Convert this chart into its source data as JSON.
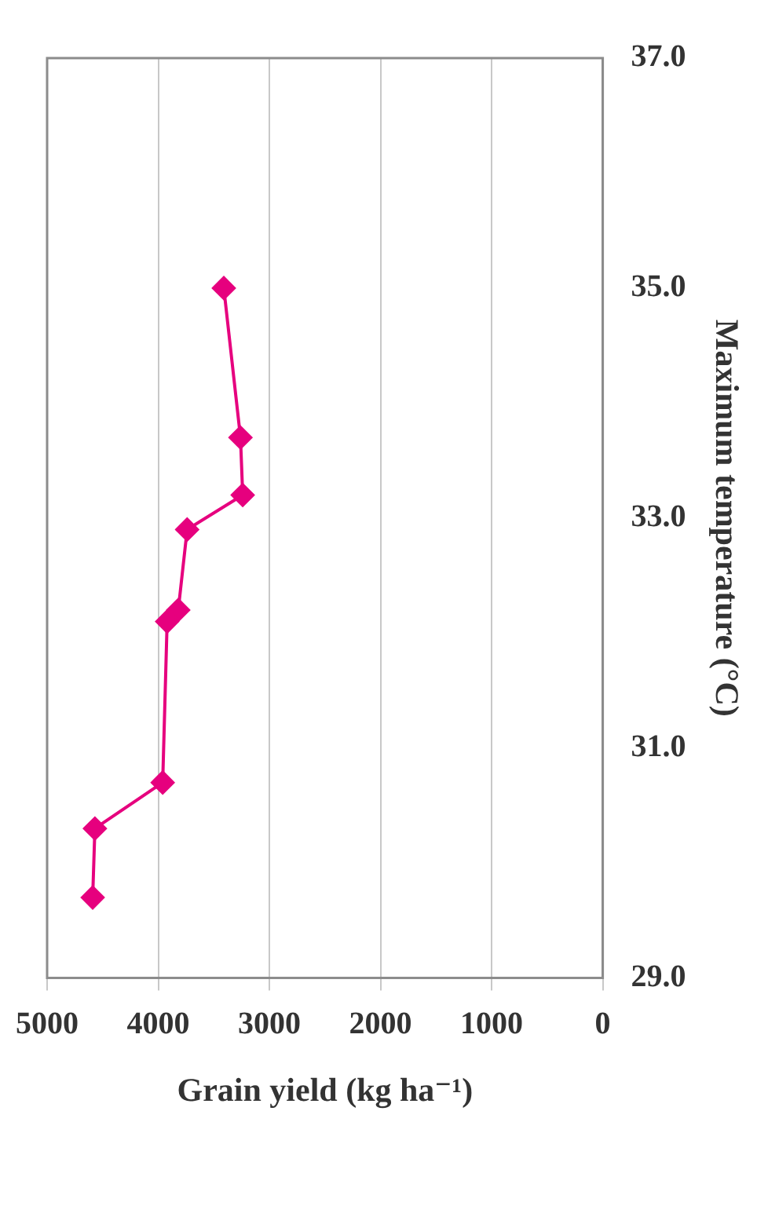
{
  "chart_data": {
    "type": "line",
    "xlabel": "Grain yield (kg ha⁻¹)",
    "ylabel": "Maximum temperature (°C)",
    "xlim": [
      5000,
      0
    ],
    "xticks": [
      5000,
      4000,
      3000,
      2000,
      1000,
      0
    ],
    "ylim": [
      29.0,
      37.0
    ],
    "yticks": [
      {
        "value": 29,
        "label": "29.0"
      },
      {
        "value": 31,
        "label": "31.0"
      },
      {
        "value": 33,
        "label": "33.0"
      },
      {
        "value": 35,
        "label": "35.0"
      },
      {
        "value": 37,
        "label": "37.0"
      }
    ],
    "series": [
      {
        "color": "#e6007e",
        "x": [
          4590,
          4570,
          3960,
          3920,
          3820,
          3740,
          3240,
          3260,
          3410
        ],
        "values": [
          29.7,
          30.3,
          30.7,
          32.1,
          32.2,
          32.9,
          33.2,
          33.7,
          35.0
        ]
      }
    ],
    "marker": "diamond",
    "grid": "x",
    "legend": false
  }
}
